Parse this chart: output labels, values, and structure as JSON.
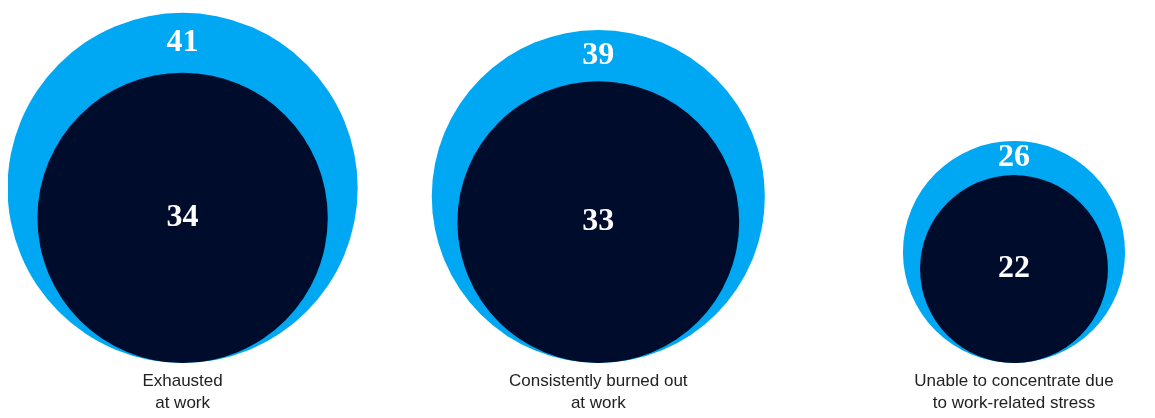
{
  "chart_data": {
    "type": "other",
    "categories": [
      "Exhausted\nat work",
      "Consistently burned out\nat work",
      "Unable to concentrate due\nto work-related stress"
    ],
    "series": [
      {
        "color": "#00a8f3",
        "values": [
          41,
          39,
          26
        ]
      },
      {
        "color": "#000c2b",
        "values": [
          34,
          33,
          22
        ]
      }
    ],
    "data_labels": true
  }
}
